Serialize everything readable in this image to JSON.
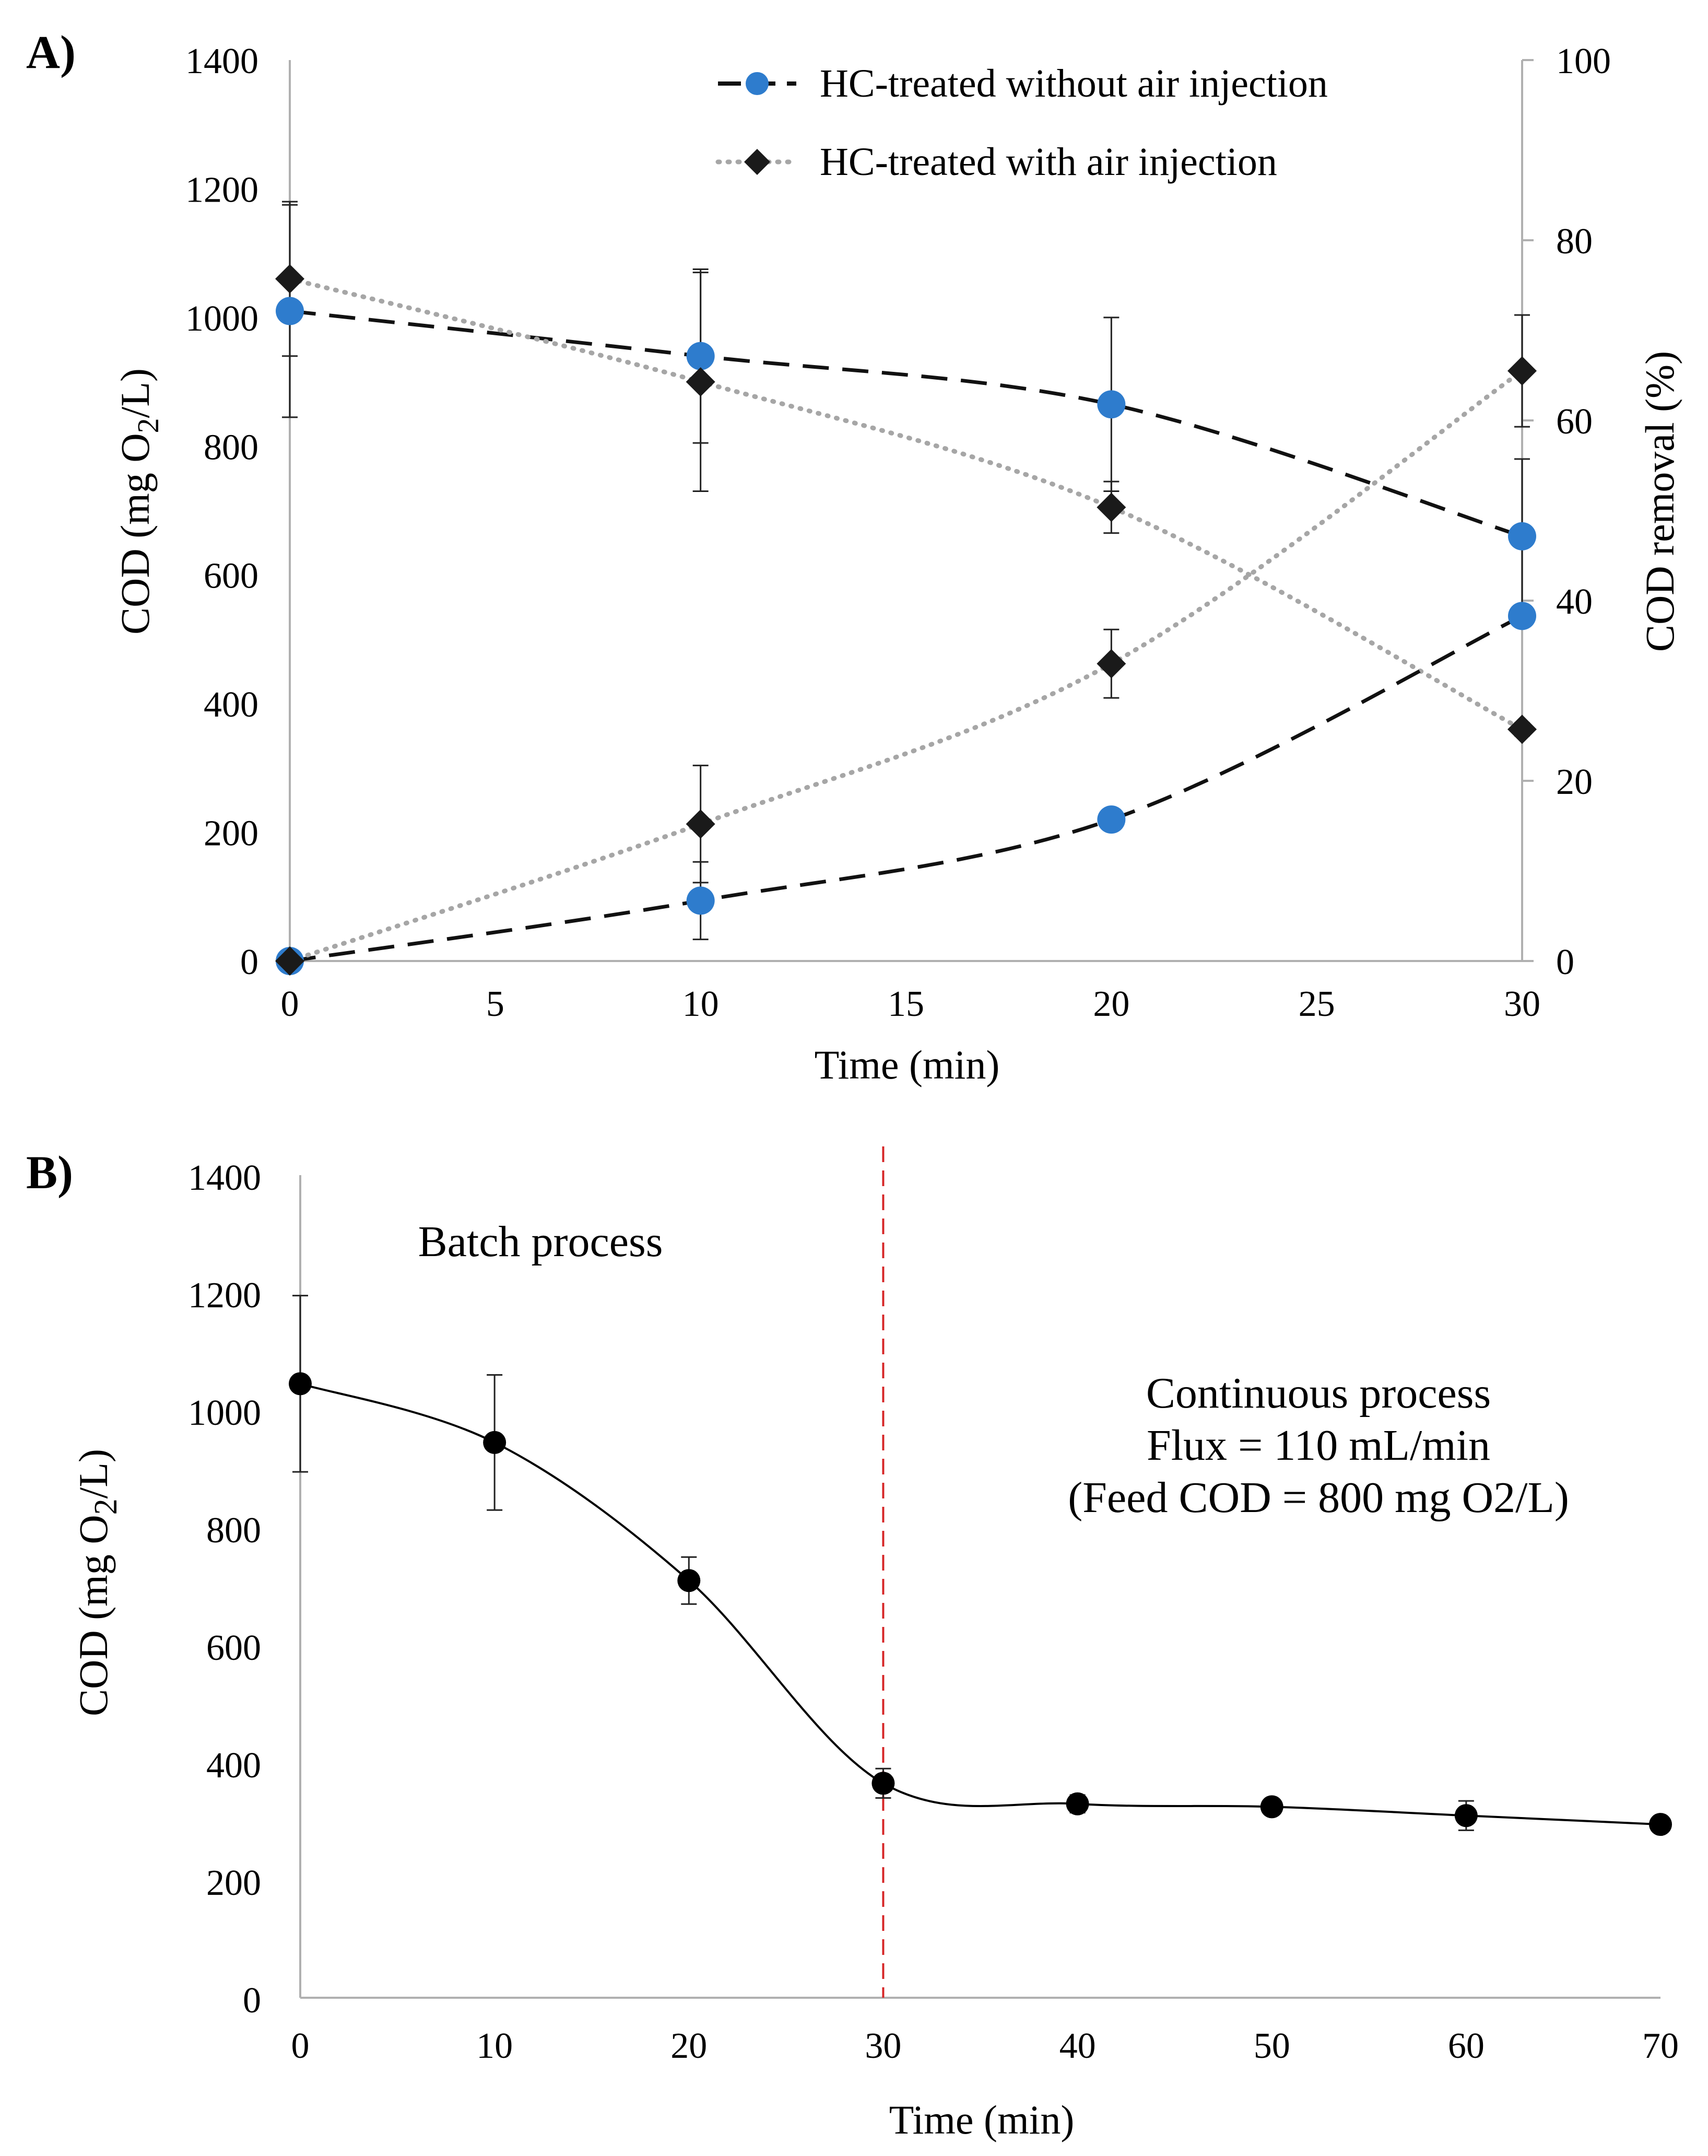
{
  "chart_data": [
    {
      "type": "line",
      "panel_label": "A)",
      "title": "",
      "xlabel": "Time (min)",
      "ylabel_left": "COD (mg O2/L)",
      "ylabel_left_parts": [
        "COD (mg O",
        "2",
        "/L)"
      ],
      "ylabel_right": "COD removal (%)",
      "xlim": [
        0,
        30
      ],
      "ylim_left": [
        0,
        1400
      ],
      "ylim_right": [
        0,
        100
      ],
      "x_ticks": [
        0,
        5,
        10,
        15,
        20,
        25,
        30
      ],
      "y_left_ticks": [
        0,
        200,
        400,
        600,
        800,
        1000,
        1200,
        1400
      ],
      "y_right_ticks": [
        0,
        20,
        40,
        60,
        80,
        100
      ],
      "legend_position": "top-right",
      "series": [
        {
          "name": "HC-treated without air injection",
          "axis": "left",
          "quantity": "COD",
          "style": "dashed",
          "marker": "circle",
          "marker_color": "#2e7ccd",
          "line_color": "#111111",
          "x": [
            0,
            10,
            20,
            30
          ],
          "values": [
            1010,
            940,
            865,
            660
          ],
          "errors": [
            165,
            135,
            135,
            120
          ]
        },
        {
          "name": "HC-treated with air injection",
          "axis": "left",
          "quantity": "COD",
          "style": "dotted",
          "marker": "diamond",
          "marker_color": "#1a1a1a",
          "line_color": "#a6a6a6",
          "x": [
            0,
            10,
            20,
            30
          ],
          "values": [
            1060,
            900,
            705,
            360
          ],
          "errors": [
            120,
            170,
            40,
            10
          ]
        },
        {
          "name": "HC-treated without air injection (removal)",
          "axis": "right",
          "quantity": "COD removal",
          "style": "dashed",
          "marker": "circle",
          "marker_color": "#2e7ccd",
          "line_color": "#111111",
          "x": [
            0,
            10,
            20,
            30
          ],
          "values": [
            0,
            6.7,
            15.7,
            38.3
          ],
          "errors": [
            0,
            4.3,
            0,
            0
          ]
        },
        {
          "name": "HC-treated with air injection (removal)",
          "axis": "right",
          "quantity": "COD removal",
          "style": "dotted",
          "marker": "diamond",
          "marker_color": "#1a1a1a",
          "line_color": "#a6a6a6",
          "x": [
            0,
            10,
            20,
            30
          ],
          "values": [
            0,
            15.2,
            33.0,
            65.5
          ],
          "errors": [
            0,
            6.5,
            3.8,
            6.2
          ]
        }
      ]
    },
    {
      "type": "line",
      "panel_label": "B)",
      "title": "",
      "xlabel": "Time (min)",
      "ylabel": "COD (mg O2/L)",
      "ylabel_parts": [
        "COD (mg O",
        "2",
        "/L)"
      ],
      "xlim": [
        0,
        70
      ],
      "ylim": [
        0,
        1400
      ],
      "x_ticks": [
        0,
        10,
        20,
        30,
        40,
        50,
        60,
        70
      ],
      "y_ticks": [
        0,
        200,
        400,
        600,
        800,
        1000,
        1200,
        1400
      ],
      "series": [
        {
          "name": "COD",
          "style": "solid",
          "marker": "circle",
          "marker_color": "#000000",
          "line_color": "#000000",
          "x": [
            0,
            10,
            20,
            30,
            40,
            50,
            60,
            70
          ],
          "values": [
            1045,
            945,
            710,
            365,
            330,
            325,
            310,
            295
          ],
          "errors": [
            150,
            115,
            40,
            25,
            15,
            10,
            25,
            0
          ]
        }
      ],
      "vline": {
        "x": 30,
        "color": "#d62728",
        "style": "dashed"
      },
      "annotations": [
        {
          "id": "batch",
          "lines": [
            "Batch process"
          ]
        },
        {
          "id": "continuous",
          "lines": [
            "Continuous process",
            "Flux = 110 mL/min",
            "(Feed COD = 800 mg O2/L)"
          ]
        }
      ]
    }
  ]
}
